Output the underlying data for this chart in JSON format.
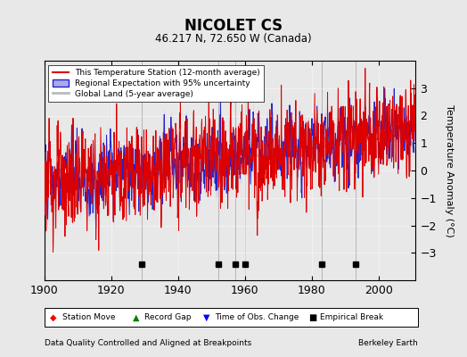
{
  "title": "NICOLET CS",
  "subtitle": "46.217 N, 72.650 W (Canada)",
  "xlabel_left": "Data Quality Controlled and Aligned at Breakpoints",
  "xlabel_right": "Berkeley Earth",
  "ylabel": "Temperature Anomaly (°C)",
  "ylim": [
    -4,
    4
  ],
  "xlim": [
    1900,
    2011
  ],
  "xticks": [
    1900,
    1920,
    1940,
    1960,
    1980,
    2000
  ],
  "yticks": [
    -3,
    -2,
    -1,
    0,
    1,
    2,
    3
  ],
  "bg_color": "#e8e8e8",
  "plot_bg_color": "#e8e8e8",
  "empirical_breaks": [
    1929,
    1952,
    1957,
    1960,
    1983,
    1993
  ],
  "station_color": "#dd0000",
  "regional_color": "#2222cc",
  "uncertainty_color": "#aaaaee",
  "global_color": "#bbbbbb",
  "legend_station": "This Temperature Station (12-month average)",
  "legend_regional": "Regional Expectation with 95% uncertainty",
  "legend_global": "Global Land (5-year average)",
  "legend_station_move": "Station Move",
  "legend_record_gap": "Record Gap",
  "legend_time_obs": "Time of Obs. Change",
  "legend_emp_break": "Empirical Break"
}
